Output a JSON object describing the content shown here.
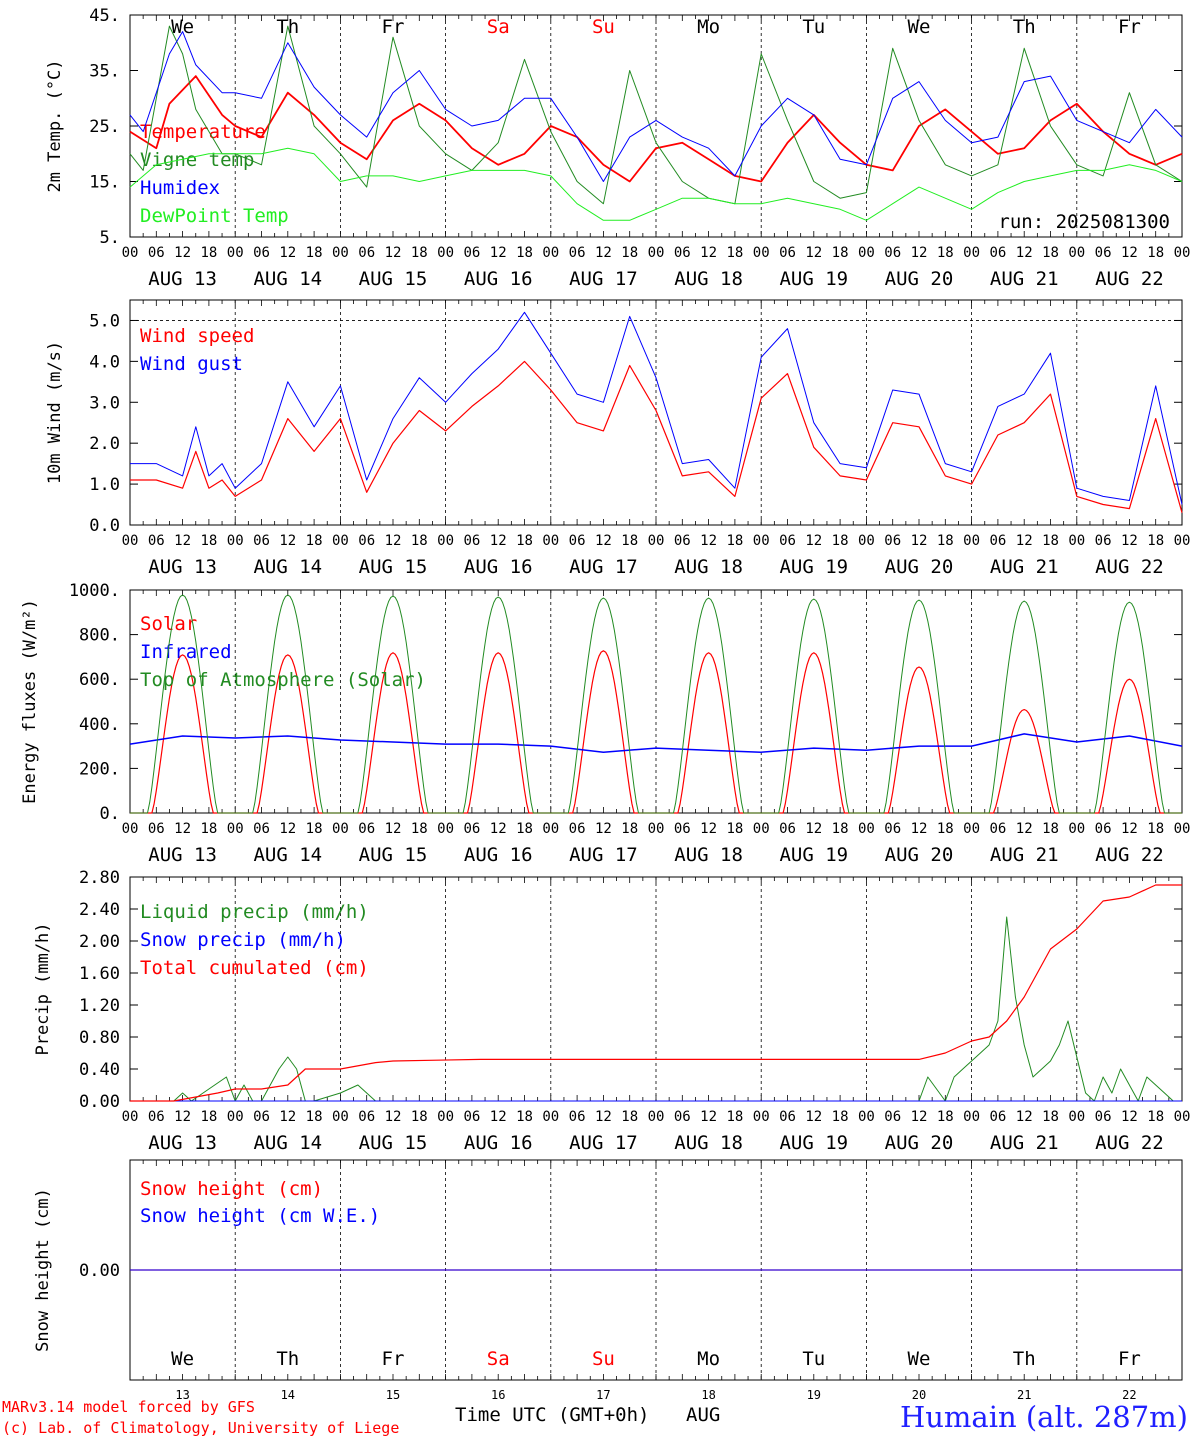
{
  "header": {
    "run_label": "run: 2025081300"
  },
  "days": {
    "names": [
      "We",
      "Th",
      "Fr",
      "Sa",
      "Su",
      "Mo",
      "Tu",
      "We",
      "Th",
      "Fr"
    ],
    "weekend_color": "#ff0000",
    "dates": [
      "AUG 13",
      "AUG 14",
      "AUG 15",
      "AUG 16",
      "AUG 17",
      "AUG 18",
      "AUG 19",
      "AUG 20",
      "AUG 21",
      "AUG 22"
    ],
    "day_numbers": [
      "13",
      "14",
      "15",
      "16",
      "17",
      "18",
      "19",
      "20",
      "21",
      "22"
    ],
    "hour_ticks": [
      "00",
      "06",
      "12",
      "18"
    ],
    "final_tick": "00"
  },
  "footer": {
    "credit_line1": "MARv3.14 model forced by GFS",
    "credit_line2": "(c) Lab. of Climatology, University of Liege",
    "xlabel": "Time UTC (GMT+0h)",
    "month": "AUG",
    "station": "Humain (alt. 287m)",
    "credit_color": "#ff0000",
    "station_color": "#2020ff"
  },
  "chart_data": [
    {
      "type": "line",
      "id": "temperature",
      "ylabel": "2m Temp. (°C)",
      "ylim": [
        5,
        45
      ],
      "yticks": [
        "5.",
        "15.",
        "25.",
        "35.",
        "45."
      ],
      "dashed_hline": null,
      "x_unit": "hours since AUG 13 00 UTC",
      "series": [
        {
          "name": "Temperature",
          "color": "#ff0000",
          "width": 1.8,
          "x": [
            0,
            6,
            9,
            15,
            21,
            24,
            30,
            36,
            42,
            48,
            54,
            60,
            66,
            72,
            78,
            84,
            90,
            96,
            102,
            108,
            114,
            120,
            126,
            132,
            138,
            144,
            150,
            156,
            162,
            168,
            174,
            180,
            186,
            192,
            198,
            204,
            210,
            216,
            222,
            228,
            234,
            240
          ],
          "y": [
            24,
            21,
            29,
            34,
            27,
            25,
            23,
            31,
            27,
            22,
            19,
            26,
            29,
            26,
            21,
            18,
            20,
            25,
            23,
            18,
            15,
            21,
            22,
            19,
            16,
            15,
            22,
            27,
            22,
            18,
            17,
            25,
            28,
            24,
            20,
            21,
            26,
            29,
            24,
            20,
            18,
            20
          ]
        },
        {
          "name": "Vigne temp",
          "color": "#228b22",
          "width": 1,
          "x": [
            0,
            3,
            9,
            12,
            15,
            21,
            24,
            30,
            36,
            42,
            48,
            54,
            60,
            66,
            72,
            78,
            84,
            90,
            96,
            102,
            108,
            114,
            120,
            126,
            132,
            138,
            144,
            150,
            156,
            162,
            168,
            174,
            180,
            186,
            192,
            198,
            204,
            210,
            216,
            222,
            228,
            234,
            240
          ],
          "y": [
            20,
            17,
            43,
            38,
            28,
            20,
            20,
            18,
            43,
            25,
            20,
            14,
            41,
            25,
            20,
            17,
            22,
            37,
            24,
            15,
            11,
            35,
            22,
            15,
            12,
            11,
            38,
            26,
            15,
            12,
            13,
            39,
            26,
            18,
            16,
            18,
            39,
            25,
            18,
            16,
            31,
            18,
            15
          ]
        },
        {
          "name": "Humidex",
          "color": "#0000ff",
          "width": 1,
          "x": [
            0,
            3,
            9,
            12,
            15,
            21,
            24,
            30,
            36,
            42,
            48,
            54,
            60,
            66,
            72,
            78,
            84,
            90,
            96,
            102,
            108,
            114,
            120,
            126,
            132,
            138,
            144,
            150,
            156,
            162,
            168,
            174,
            180,
            186,
            192,
            198,
            204,
            210,
            216,
            222,
            228,
            234,
            240
          ],
          "y": [
            27,
            24,
            38,
            42,
            36,
            31,
            31,
            30,
            40,
            32,
            27,
            23,
            31,
            35,
            28,
            25,
            26,
            30,
            30,
            23,
            15,
            23,
            26,
            23,
            21,
            16,
            25,
            30,
            27,
            19,
            18,
            30,
            33,
            26,
            22,
            23,
            33,
            34,
            26,
            24,
            22,
            28,
            23
          ]
        },
        {
          "name": "DewPoint Temp",
          "color": "#22ee22",
          "width": 1,
          "x": [
            0,
            6,
            12,
            18,
            24,
            30,
            36,
            42,
            48,
            54,
            60,
            66,
            72,
            78,
            84,
            90,
            96,
            102,
            108,
            114,
            120,
            126,
            132,
            138,
            144,
            150,
            156,
            162,
            168,
            174,
            180,
            186,
            192,
            198,
            204,
            210,
            216,
            222,
            228,
            234,
            240
          ],
          "y": [
            14,
            18,
            19,
            20,
            20,
            20,
            21,
            20,
            15,
            16,
            16,
            15,
            16,
            17,
            17,
            17,
            16,
            11,
            8,
            8,
            10,
            12,
            12,
            11,
            11,
            12,
            11,
            10,
            8,
            11,
            14,
            12,
            10,
            13,
            15,
            16,
            17,
            17,
            18,
            17,
            15
          ]
        }
      ]
    },
    {
      "type": "line",
      "id": "wind",
      "ylabel": "10m Wind (m/s)",
      "ylim": [
        0,
        5.5
      ],
      "yticks": [
        "0.0",
        "1.0",
        "2.0",
        "3.0",
        "4.0",
        "5.0"
      ],
      "dashed_hline": 5.0,
      "x_unit": "hours since AUG 13 00 UTC",
      "series": [
        {
          "name": "Wind speed",
          "color": "#ff0000",
          "width": 1.2,
          "x": [
            0,
            6,
            12,
            15,
            18,
            21,
            24,
            30,
            36,
            42,
            48,
            54,
            60,
            66,
            72,
            78,
            84,
            90,
            96,
            102,
            108,
            114,
            120,
            126,
            132,
            138,
            144,
            150,
            156,
            162,
            168,
            174,
            180,
            186,
            192,
            198,
            204,
            210,
            216,
            222,
            228,
            234,
            240
          ],
          "y": [
            1.1,
            1.1,
            0.9,
            1.8,
            0.9,
            1.1,
            0.7,
            1.1,
            2.6,
            1.8,
            2.6,
            0.8,
            2.0,
            2.8,
            2.3,
            2.9,
            3.4,
            4.0,
            3.3,
            2.5,
            2.3,
            3.9,
            2.8,
            1.2,
            1.3,
            0.7,
            3.1,
            3.7,
            1.9,
            1.2,
            1.1,
            2.5,
            2.4,
            1.2,
            1.0,
            2.2,
            2.5,
            3.2,
            0.7,
            0.5,
            0.4,
            2.6,
            0.3
          ]
        },
        {
          "name": "Wind gust",
          "color": "#0000ff",
          "width": 1,
          "x": [
            0,
            6,
            12,
            15,
            18,
            21,
            24,
            30,
            36,
            42,
            48,
            54,
            60,
            66,
            72,
            78,
            84,
            90,
            96,
            102,
            108,
            114,
            120,
            126,
            132,
            138,
            144,
            150,
            156,
            162,
            168,
            174,
            180,
            186,
            192,
            198,
            204,
            210,
            216,
            222,
            228,
            234,
            240
          ],
          "y": [
            1.5,
            1.5,
            1.2,
            2.4,
            1.2,
            1.5,
            0.9,
            1.5,
            3.5,
            2.4,
            3.4,
            1.1,
            2.6,
            3.6,
            3.0,
            3.7,
            4.3,
            5.2,
            4.2,
            3.2,
            3.0,
            5.1,
            3.6,
            1.5,
            1.6,
            0.9,
            4.1,
            4.8,
            2.5,
            1.5,
            1.4,
            3.3,
            3.2,
            1.5,
            1.3,
            2.9,
            3.2,
            4.2,
            0.9,
            0.7,
            0.6,
            3.4,
            0.5
          ]
        }
      ]
    },
    {
      "type": "line",
      "id": "energy",
      "ylabel": "Energy fluxes (W/m²)",
      "ylim": [
        0,
        1100
      ],
      "yticks": [
        "0.",
        "200.",
        "400.",
        "600.",
        "800.",
        "1000."
      ],
      "dashed_hline": null,
      "x_unit": "hours since AUG 13 00 UTC",
      "series": [
        {
          "name": "Solar",
          "color": "#ff0000",
          "width": 1.2,
          "peaks": [
            780,
            780,
            790,
            790,
            800,
            790,
            790,
            720,
            510,
            660
          ],
          "sunrise": 5,
          "sunset": 19
        },
        {
          "name": "Infrared",
          "color": "#0000ff",
          "width": 1.5,
          "x": [
            0,
            12,
            24,
            36,
            48,
            60,
            72,
            84,
            96,
            108,
            120,
            132,
            144,
            156,
            168,
            180,
            192,
            204,
            216,
            228,
            240
          ],
          "y": [
            340,
            380,
            370,
            380,
            360,
            350,
            340,
            340,
            330,
            300,
            320,
            310,
            300,
            320,
            310,
            330,
            330,
            390,
            350,
            380,
            330
          ]
        },
        {
          "name": "Top of Atmosphere (Solar)",
          "color": "#228b22",
          "width": 1,
          "peaks": [
            1075,
            1075,
            1070,
            1065,
            1060,
            1060,
            1055,
            1050,
            1045,
            1040
          ],
          "sunrise": 4,
          "sunset": 20
        }
      ]
    },
    {
      "type": "line",
      "id": "precip",
      "ylabel": "Precip (mm/h)",
      "ylim": [
        0,
        2.8
      ],
      "yticks": [
        "0.00",
        "0.40",
        "0.80",
        "1.20",
        "1.60",
        "2.00",
        "2.40",
        "2.80"
      ],
      "dashed_hline": null,
      "x_unit": "hours since AUG 13 00 UTC",
      "series": [
        {
          "name": "Liquid precip (mm/h)",
          "color": "#228b22",
          "width": 1,
          "x": [
            0,
            10,
            12,
            14,
            22,
            24,
            26,
            28,
            30,
            34,
            36,
            38,
            40,
            42,
            48,
            52,
            54,
            56,
            62,
            150,
            174,
            180,
            182,
            186,
            188,
            190,
            194,
            196,
            198,
            200,
            202,
            204,
            206,
            210,
            212,
            214,
            218,
            220,
            222,
            224,
            226,
            230,
            232,
            236,
            238,
            240
          ],
          "y": [
            0,
            0,
            0.1,
            0,
            0.3,
            0,
            0.2,
            0,
            0,
            0.4,
            0.55,
            0.4,
            0,
            0,
            0.1,
            0.2,
            0.1,
            0,
            0,
            0,
            0,
            0,
            0.3,
            0,
            0.3,
            0.4,
            0.6,
            0.7,
            1.0,
            2.3,
            1.3,
            0.7,
            0.3,
            0.5,
            0.7,
            1.0,
            0.1,
            0,
            0.3,
            0.1,
            0.4,
            0,
            0.3,
            0.1,
            0,
            0
          ]
        },
        {
          "name": "Snow precip (mm/h)",
          "color": "#0000ff",
          "width": 1,
          "x": [
            0,
            240
          ],
          "y": [
            0,
            0
          ]
        },
        {
          "name": "Total cumulated (cm)",
          "color": "#ff0000",
          "width": 1.2,
          "x": [
            0,
            10,
            20,
            24,
            30,
            36,
            40,
            48,
            56,
            60,
            70,
            80,
            96,
            120,
            150,
            180,
            186,
            192,
            196,
            200,
            204,
            210,
            216,
            222,
            228,
            234,
            240
          ],
          "y": [
            0,
            0,
            0.1,
            0.15,
            0.15,
            0.2,
            0.4,
            0.4,
            0.48,
            0.5,
            0.51,
            0.52,
            0.52,
            0.52,
            0.52,
            0.52,
            0.6,
            0.75,
            0.8,
            1.0,
            1.3,
            1.9,
            2.15,
            2.5,
            2.55,
            2.7,
            2.7
          ]
        }
      ]
    },
    {
      "type": "line",
      "id": "snow",
      "ylabel": "Snow height (cm)",
      "ylim": [
        -1,
        1
      ],
      "yticks": [
        "0.00"
      ],
      "ytick_values": [
        0
      ],
      "dashed_hline": null,
      "x_unit": "hours since AUG 13 00 UTC",
      "series": [
        {
          "name": "Snow height (cm)",
          "color": "#ff0000",
          "width": 1.2,
          "x": [
            0,
            240
          ],
          "y": [
            0,
            0
          ]
        },
        {
          "name": "Snow height (cm W.E.)",
          "color": "#0000ff",
          "width": 1,
          "x": [
            0,
            240
          ],
          "y": [
            0,
            0
          ]
        }
      ]
    }
  ]
}
